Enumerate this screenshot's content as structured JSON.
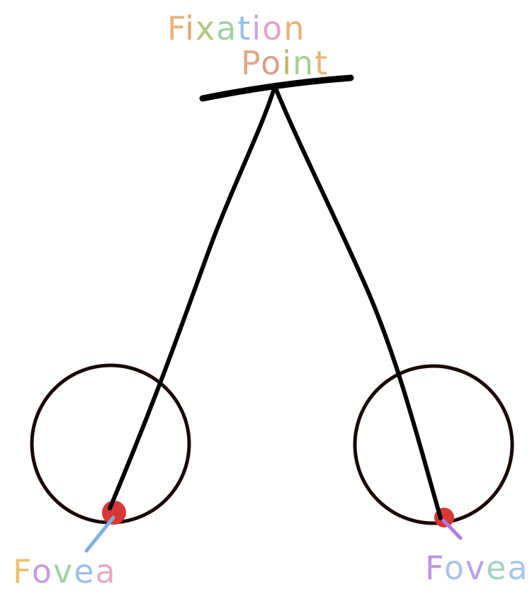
{
  "diagram": {
    "title_line1": "Fixation",
    "title_line2": "Point",
    "left_label": "Fovea",
    "right_label": "Fovea",
    "colors": {
      "line": "#000000",
      "eye_outline": "#1a0707",
      "fovea": "#d93636",
      "left_pointer": "#7fb0e3",
      "right_pointer": "#b27be0",
      "title_palette": [
        "#e9b479",
        "#e8a36b",
        "#b0c77b",
        "#9dd0a1",
        "#93bfe0",
        "#c6a6dd",
        "#e5a2c2",
        "#e8b079"
      ],
      "point_palette": [
        "#e0a982",
        "#d8a087",
        "#b8b86c",
        "#a4d08e",
        "#e9b574"
      ],
      "fovea_left_palette": [
        "#f0c16a",
        "#c59be2",
        "#9ed2a4",
        "#9cc0e6",
        "#e7a8c8"
      ],
      "fovea_right_palette": [
        "#b994e6",
        "#a9c2ea",
        "#b9a0e6",
        "#9fd6c0",
        "#a7c4ea"
      ]
    }
  }
}
